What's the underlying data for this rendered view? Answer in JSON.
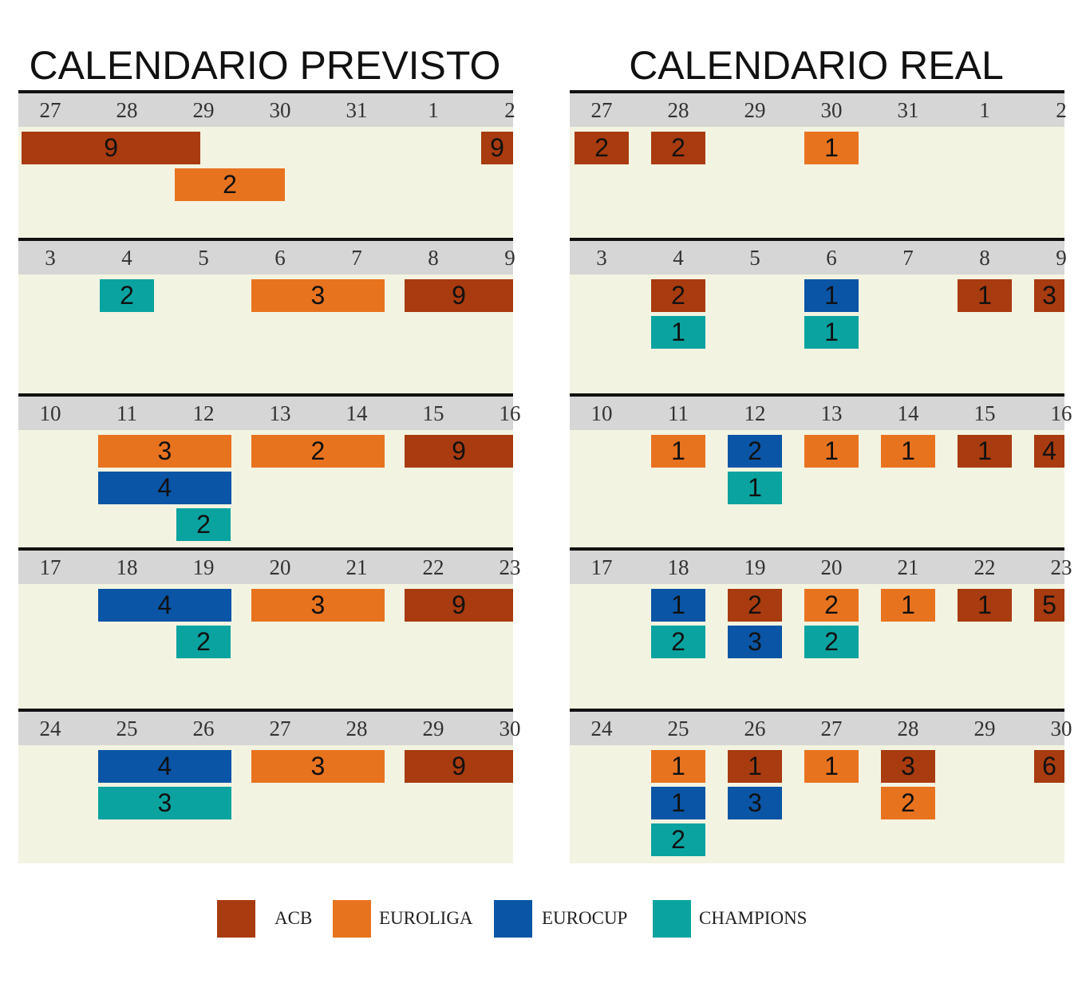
{
  "chart_data": [
    {
      "type": "table",
      "title": "CALENDARIO PREVISTO",
      "weeks": [
        {
          "days": [
            "27",
            "28",
            "29",
            "30",
            "31",
            "1",
            "2"
          ],
          "blocks": [
            {
              "competition": "ACB",
              "start": 0,
              "span": 2.4,
              "row": 0,
              "value": 9
            },
            {
              "competition": "ACB",
              "start": 6,
              "span": 1,
              "row": 0,
              "value": 9
            },
            {
              "competition": "EUROLIGA",
              "start": 2,
              "span": 1.5,
              "row": 1,
              "value": 2
            }
          ]
        },
        {
          "days": [
            "3",
            "4",
            "5",
            "6",
            "7",
            "8",
            "9"
          ],
          "blocks": [
            {
              "competition": "CHAMPIONS",
              "start": 1,
              "span": 0.75,
              "row": 0,
              "value": 2
            },
            {
              "competition": "EUROLIGA",
              "start": 3,
              "span": 1.8,
              "row": 0,
              "value": 3
            },
            {
              "competition": "ACB",
              "start": 5,
              "span": 1.8,
              "row": 0,
              "value": 9
            }
          ]
        },
        {
          "days": [
            "10",
            "11",
            "12",
            "13",
            "14",
            "15",
            "16"
          ],
          "blocks": [
            {
              "competition": "EUROLIGA",
              "start": 1,
              "span": 1.8,
              "row": 0,
              "value": 3
            },
            {
              "competition": "EUROLIGA",
              "start": 3,
              "span": 1.8,
              "row": 0,
              "value": 2
            },
            {
              "competition": "ACB",
              "start": 5,
              "span": 1.8,
              "row": 0,
              "value": 9
            },
            {
              "competition": "EUROCUP",
              "start": 1,
              "span": 1.8,
              "row": 1,
              "value": 4
            },
            {
              "competition": "CHAMPIONS",
              "start": 2,
              "span": 0.75,
              "row": 2,
              "value": 2
            }
          ]
        },
        {
          "days": [
            "17",
            "18",
            "19",
            "20",
            "21",
            "22",
            "23"
          ],
          "blocks": [
            {
              "competition": "EUROCUP",
              "start": 1,
              "span": 1.8,
              "row": 0,
              "value": 4
            },
            {
              "competition": "EUROLIGA",
              "start": 3,
              "span": 1.8,
              "row": 0,
              "value": 3
            },
            {
              "competition": "ACB",
              "start": 5,
              "span": 1.8,
              "row": 0,
              "value": 9
            },
            {
              "competition": "CHAMPIONS",
              "start": 2,
              "span": 0.75,
              "row": 1,
              "value": 2
            }
          ]
        },
        {
          "days": [
            "24",
            "25",
            "26",
            "27",
            "28",
            "29",
            "30"
          ],
          "blocks": [
            {
              "competition": "EUROCUP",
              "start": 1,
              "span": 1.8,
              "row": 0,
              "value": 4
            },
            {
              "competition": "EUROLIGA",
              "start": 3,
              "span": 1.8,
              "row": 0,
              "value": 3
            },
            {
              "competition": "ACB",
              "start": 5,
              "span": 1.8,
              "row": 0,
              "value": 9
            },
            {
              "competition": "CHAMPIONS",
              "start": 1,
              "span": 1.8,
              "row": 1,
              "value": 3
            }
          ]
        }
      ]
    },
    {
      "type": "table",
      "title": "CALENDARIO REAL",
      "weeks": [
        {
          "days": [
            "27",
            "28",
            "29",
            "30",
            "31",
            "1",
            "2"
          ],
          "blocks": [
            {
              "competition": "ACB",
              "start": 0,
              "span": 0.75,
              "row": 0,
              "value": 2
            },
            {
              "competition": "ACB",
              "start": 1,
              "span": 0.75,
              "row": 0,
              "value": 2
            },
            {
              "competition": "EUROLIGA",
              "start": 3,
              "span": 0.75,
              "row": 0,
              "value": 1
            }
          ]
        },
        {
          "days": [
            "3",
            "4",
            "5",
            "6",
            "7",
            "8",
            "9"
          ],
          "blocks": [
            {
              "competition": "ACB",
              "start": 1,
              "span": 0.75,
              "row": 0,
              "value": 2
            },
            {
              "competition": "EUROCUP",
              "start": 3,
              "span": 0.75,
              "row": 0,
              "value": 1
            },
            {
              "competition": "ACB",
              "start": 5,
              "span": 0.75,
              "row": 0,
              "value": 1
            },
            {
              "competition": "ACB",
              "start": 6,
              "span": 0.75,
              "row": 0,
              "value": 3
            },
            {
              "competition": "CHAMPIONS",
              "start": 1,
              "span": 0.75,
              "row": 1,
              "value": 1
            },
            {
              "competition": "CHAMPIONS",
              "start": 3,
              "span": 0.75,
              "row": 1,
              "value": 1
            }
          ]
        },
        {
          "days": [
            "10",
            "11",
            "12",
            "13",
            "14",
            "15",
            "16"
          ],
          "blocks": [
            {
              "competition": "EUROLIGA",
              "start": 1,
              "span": 0.75,
              "row": 0,
              "value": 1
            },
            {
              "competition": "EUROCUP",
              "start": 2,
              "span": 0.75,
              "row": 0,
              "value": 2
            },
            {
              "competition": "EUROLIGA",
              "start": 3,
              "span": 0.75,
              "row": 0,
              "value": 1
            },
            {
              "competition": "EUROLIGA",
              "start": 4,
              "span": 0.75,
              "row": 0,
              "value": 1
            },
            {
              "competition": "ACB",
              "start": 5,
              "span": 0.75,
              "row": 0,
              "value": 1
            },
            {
              "competition": "ACB",
              "start": 6,
              "span": 0.75,
              "row": 0,
              "value": 4
            },
            {
              "competition": "CHAMPIONS",
              "start": 2,
              "span": 0.75,
              "row": 1,
              "value": 1
            }
          ]
        },
        {
          "days": [
            "17",
            "18",
            "19",
            "20",
            "21",
            "22",
            "23"
          ],
          "blocks": [
            {
              "competition": "EUROCUP",
              "start": 1,
              "span": 0.75,
              "row": 0,
              "value": 1
            },
            {
              "competition": "ACB",
              "start": 2,
              "span": 0.75,
              "row": 0,
              "value": 2
            },
            {
              "competition": "EUROLIGA",
              "start": 3,
              "span": 0.75,
              "row": 0,
              "value": 2
            },
            {
              "competition": "EUROLIGA",
              "start": 4,
              "span": 0.75,
              "row": 0,
              "value": 1
            },
            {
              "competition": "ACB",
              "start": 5,
              "span": 0.75,
              "row": 0,
              "value": 1
            },
            {
              "competition": "ACB",
              "start": 6,
              "span": 0.75,
              "row": 0,
              "value": 5
            },
            {
              "competition": "CHAMPIONS",
              "start": 1,
              "span": 0.75,
              "row": 1,
              "value": 2
            },
            {
              "competition": "EUROCUP",
              "start": 2,
              "span": 0.75,
              "row": 1,
              "value": 3
            },
            {
              "competition": "CHAMPIONS",
              "start": 3,
              "span": 0.75,
              "row": 1,
              "value": 2
            }
          ]
        },
        {
          "days": [
            "24",
            "25",
            "26",
            "27",
            "28",
            "29",
            "30"
          ],
          "blocks": [
            {
              "competition": "EUROLIGA",
              "start": 1,
              "span": 0.75,
              "row": 0,
              "value": 1
            },
            {
              "competition": "ACB",
              "start": 2,
              "span": 0.75,
              "row": 0,
              "value": 1
            },
            {
              "competition": "EUROLIGA",
              "start": 3,
              "span": 0.75,
              "row": 0,
              "value": 1
            },
            {
              "competition": "ACB",
              "start": 4,
              "span": 0.75,
              "row": 0,
              "value": 3
            },
            {
              "competition": "ACB",
              "start": 6,
              "span": 0.75,
              "row": 0,
              "value": 6
            },
            {
              "competition": "EUROCUP",
              "start": 1,
              "span": 0.75,
              "row": 1,
              "value": 1
            },
            {
              "competition": "EUROCUP",
              "start": 2,
              "span": 0.75,
              "row": 1,
              "value": 3
            },
            {
              "competition": "EUROLIGA",
              "start": 4,
              "span": 0.75,
              "row": 1,
              "value": 2
            },
            {
              "competition": "CHAMPIONS",
              "start": 1,
              "span": 0.75,
              "row": 2,
              "value": 2
            }
          ]
        }
      ]
    }
  ],
  "legend": [
    {
      "competition": "ACB",
      "label": "ACB",
      "color": "#a83b0f"
    },
    {
      "competition": "EUROLIGA",
      "label": "EUROLIGA",
      "color": "#e8731f"
    },
    {
      "competition": "EUROCUP",
      "label": "EUROCUP",
      "color": "#0a55a5"
    },
    {
      "competition": "CHAMPIONS",
      "label": "CHAMPIONS",
      "color": "#0aa3a0"
    }
  ]
}
